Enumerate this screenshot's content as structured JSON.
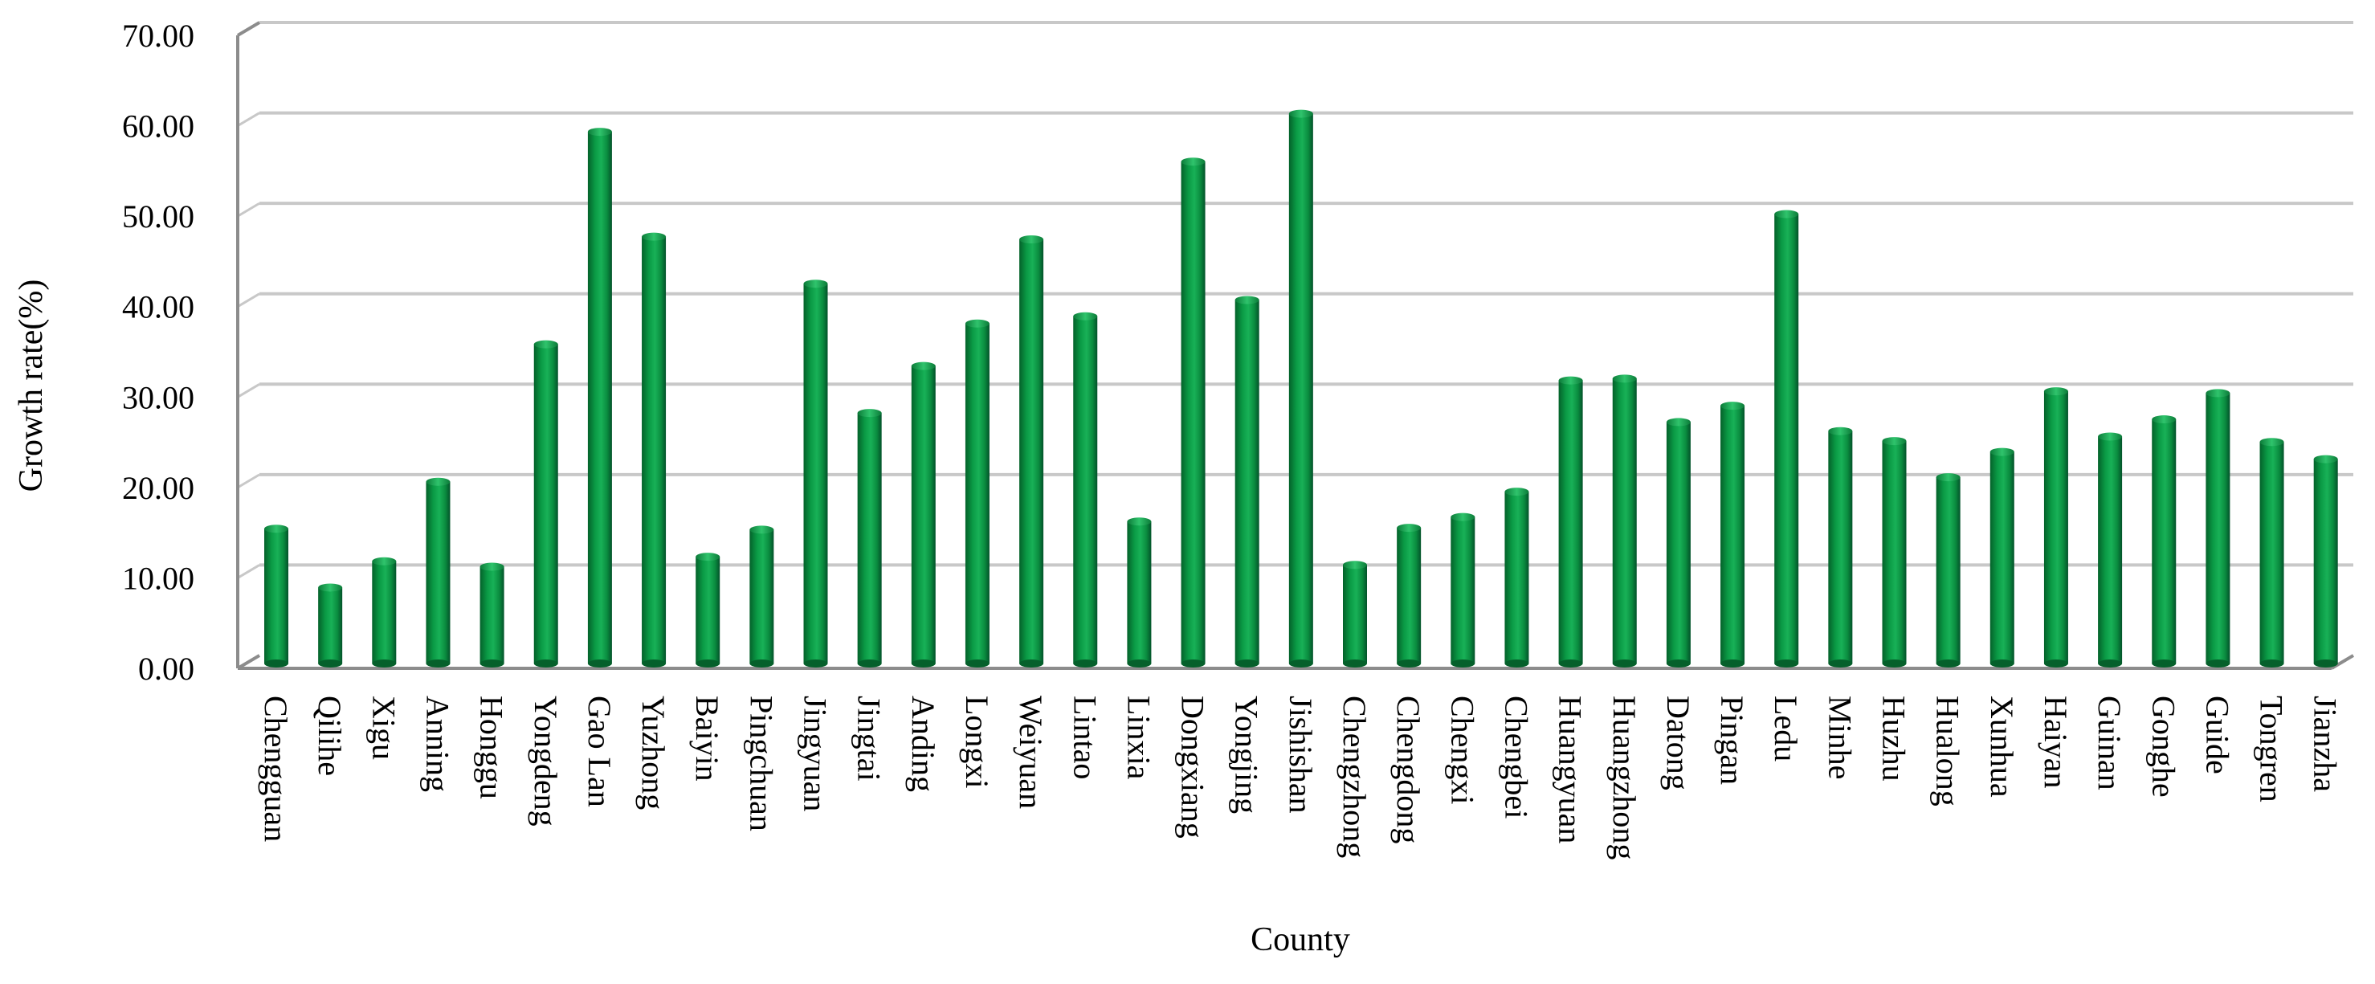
{
  "chart_data": {
    "type": "bar",
    "xlabel": "County",
    "ylabel": "Growth rate(%)",
    "ylim": [
      0,
      70
    ],
    "yticks": [
      "0.00",
      "10.00",
      "20.00",
      "30.00",
      "40.00",
      "50.00",
      "60.00",
      "70.00"
    ],
    "grid": true,
    "legend": "none",
    "bar_color": "#0a9a45",
    "categories": [
      "Chengguan",
      "Qilihe",
      "Xigu",
      "Anning",
      "Honggu",
      "Yongdeng",
      "Gao Lan",
      "Yuzhong",
      "Baiyin",
      "Pingchuan",
      "Jingyuan",
      "Jingtai",
      "Anding",
      "Longxi",
      "Weiyuan",
      "Lintao",
      "Linxia",
      "Dongxiang",
      "Yongjing",
      "Jishishan",
      "Chengzhong",
      "Chengdong",
      "Chengxi",
      "Chengbei",
      "Huangyuan",
      "Huangzhong",
      "Datong",
      "Pingan",
      "Ledu",
      "Minhe",
      "Huzhu",
      "Hualong",
      "Xunhua",
      "Haiyan",
      "Guinan",
      "Gonghe",
      "Guide",
      "Tongren",
      "Jianzha"
    ],
    "values": [
      14.9,
      8.4,
      11.3,
      20.1,
      10.7,
      35.3,
      58.8,
      47.2,
      11.8,
      14.8,
      42.0,
      27.7,
      32.9,
      37.6,
      46.9,
      38.4,
      15.7,
      55.5,
      40.2,
      60.8,
      10.9,
      15.0,
      16.2,
      19.0,
      31.3,
      31.5,
      26.7,
      28.5,
      49.7,
      25.7,
      24.6,
      20.6,
      23.4,
      30.1,
      25.1,
      27.0,
      29.9,
      24.5,
      22.6
    ]
  }
}
